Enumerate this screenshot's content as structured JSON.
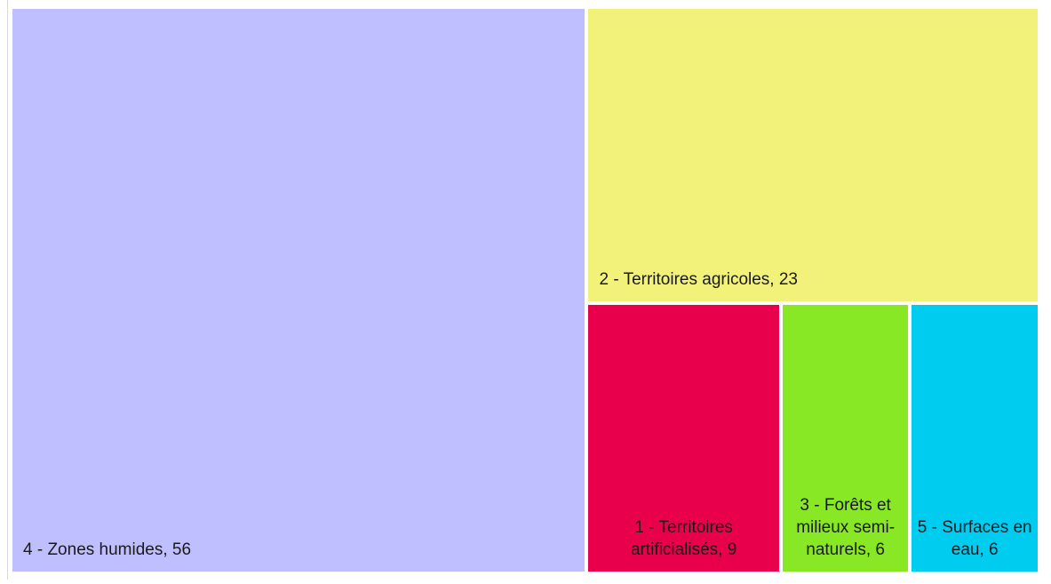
{
  "chart_data": {
    "type": "treemap",
    "labels": [
      "4 - Zones humides, 56",
      "2 - Territoires agricoles, 23",
      "1 - Territoires artificialisés, 9",
      "3 - Forêts et milieux semi-naturels, 6",
      "5 - Surfaces en eau, 6"
    ],
    "values": [
      56,
      23,
      9,
      6,
      6
    ],
    "colors": [
      "#bfbfff",
      "#f2f27a",
      "#e8004c",
      "#88e825",
      "#00ccf0"
    ]
  }
}
